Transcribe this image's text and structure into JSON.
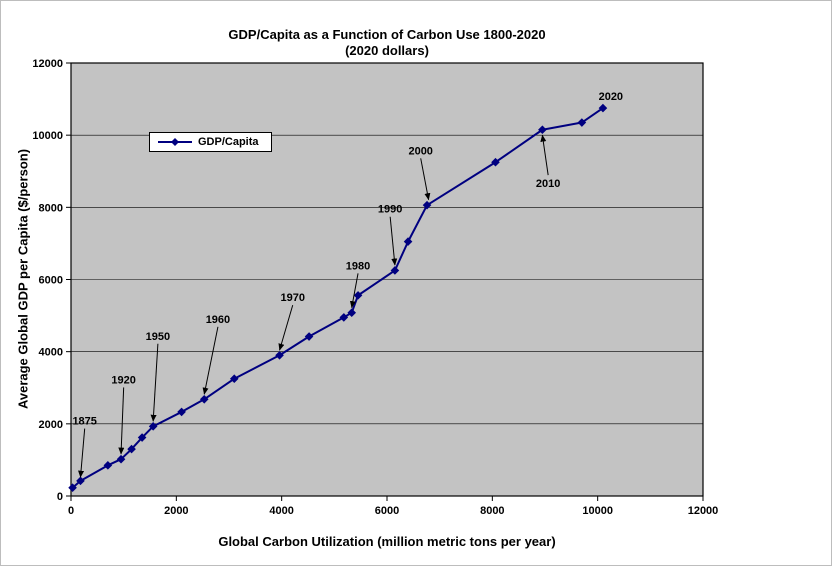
{
  "chart_data": {
    "type": "line",
    "title": "GDP/Capita as a Function of Carbon Use 1800-2020",
    "subtitle": "(2020 dollars)",
    "xlabel": "Global Carbon Utilization (million metric tons per year)",
    "ylabel": "Average Global GDP per Capita ($/person)",
    "xlim": [
      0,
      12000
    ],
    "ylim": [
      0,
      12000
    ],
    "x_ticks": [
      0,
      2000,
      4000,
      6000,
      8000,
      10000,
      12000
    ],
    "y_ticks": [
      0,
      2000,
      4000,
      6000,
      8000,
      10000,
      12000
    ],
    "grid": "horizontal",
    "plot_bg": "#c3c3c3",
    "legend": {
      "label": "GDP/Capita"
    },
    "series": [
      {
        "name": "GDP/Capita",
        "color": "#000080",
        "marker": "diamond",
        "x": [
          30,
          180,
          700,
          950,
          1150,
          1350,
          1560,
          2100,
          2530,
          3100,
          3960,
          4520,
          5180,
          5330,
          5450,
          6150,
          6400,
          6760,
          8060,
          8950,
          9700,
          10100
        ],
        "y": [
          230,
          420,
          850,
          1020,
          1300,
          1620,
          1930,
          2330,
          2680,
          3250,
          3900,
          4420,
          4950,
          5080,
          5560,
          6250,
          7050,
          8060,
          9250,
          10150,
          10350,
          10750
        ]
      }
    ],
    "annotations": [
      {
        "text": "1875",
        "label_x": 260,
        "label_y": 1980,
        "target_x": 180,
        "target_y": 520,
        "arrow": true
      },
      {
        "text": "1920",
        "label_x": 1000,
        "label_y": 3120,
        "target_x": 950,
        "target_y": 1160,
        "arrow": true
      },
      {
        "text": "1950",
        "label_x": 1650,
        "label_y": 4330,
        "target_x": 1560,
        "target_y": 2070,
        "arrow": true
      },
      {
        "text": "1960",
        "label_x": 2790,
        "label_y": 4800,
        "target_x": 2530,
        "target_y": 2820,
        "arrow": true
      },
      {
        "text": "1970",
        "label_x": 4210,
        "label_y": 5400,
        "target_x": 3960,
        "target_y": 4040,
        "arrow": true
      },
      {
        "text": "1980",
        "label_x": 5450,
        "label_y": 6280,
        "target_x": 5330,
        "target_y": 5220,
        "arrow": true
      },
      {
        "text": "1990",
        "label_x": 6060,
        "label_y": 7850,
        "target_x": 6150,
        "target_y": 6400,
        "arrow": true
      },
      {
        "text": "2000",
        "label_x": 6640,
        "label_y": 9470,
        "target_x": 6790,
        "target_y": 8210,
        "arrow": true
      },
      {
        "text": "2010",
        "label_x": 9060,
        "label_y": 8560,
        "target_x": 8950,
        "target_y": 10000,
        "arrow": true
      },
      {
        "text": "2020",
        "label_x": 10250,
        "label_y": 10980,
        "target_x": 10100,
        "target_y": 10750,
        "arrow": false
      }
    ]
  }
}
